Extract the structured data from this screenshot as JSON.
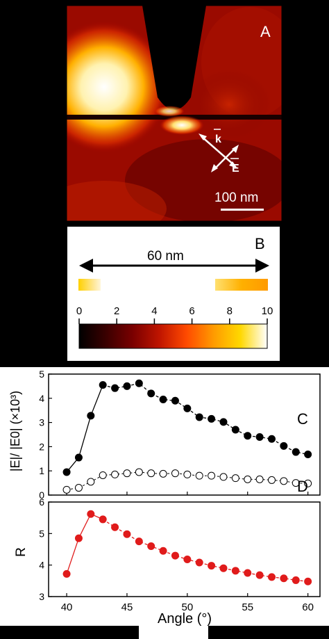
{
  "panel_a": {
    "letter": "A",
    "k_label": "k",
    "e_label": "E",
    "scalebar_label": "100 nm"
  },
  "panel_b": {
    "letter": "B",
    "gap_label": "60 nm",
    "colorbar_ticks": [
      "0",
      "2",
      "4",
      "6",
      "8",
      "10"
    ],
    "colorbar_range": [
      0,
      10
    ],
    "colormap": [
      "#000000",
      "#3a0000",
      "#7a0000",
      "#c01500",
      "#ff4a00",
      "#ff9a00",
      "#ffd800",
      "#ffffff"
    ]
  },
  "colors": {
    "filled_series_c": "#000000",
    "filled_series_d": "#e01b1b",
    "background": "#000000"
  },
  "chart_data": [
    {
      "type": "scatter",
      "panel": "C",
      "ylabel": "|E|/ |E0| (×10³)",
      "xlim": [
        38.5,
        61
      ],
      "ylim": [
        0,
        5
      ],
      "yticks": [
        0,
        1,
        2,
        3,
        4,
        5
      ],
      "grid": false,
      "series": [
        {
          "style": "filled",
          "x": [
            40,
            41,
            42,
            43,
            44,
            45,
            46,
            47,
            48,
            49,
            50,
            51,
            52,
            53,
            54,
            55,
            56,
            57,
            58,
            59,
            60
          ],
          "values": [
            0.95,
            1.55,
            3.28,
            4.55,
            4.42,
            4.5,
            4.62,
            4.2,
            3.95,
            3.9,
            3.58,
            3.22,
            3.15,
            3.02,
            2.7,
            2.45,
            2.4,
            2.32,
            2.03,
            1.78,
            1.68
          ]
        },
        {
          "style": "open",
          "x": [
            40,
            41,
            42,
            43,
            44,
            45,
            46,
            47,
            48,
            49,
            50,
            51,
            52,
            53,
            54,
            55,
            56,
            57,
            58,
            59,
            60
          ],
          "values": [
            0.22,
            0.3,
            0.55,
            0.82,
            0.85,
            0.9,
            0.95,
            0.9,
            0.88,
            0.9,
            0.85,
            0.8,
            0.8,
            0.75,
            0.7,
            0.65,
            0.65,
            0.62,
            0.58,
            0.5,
            0.48
          ]
        }
      ]
    },
    {
      "type": "scatter",
      "panel": "D",
      "ylabel": "R",
      "xlabel": "Angle (°)",
      "xlim": [
        38.5,
        61
      ],
      "ylim": [
        3,
        6
      ],
      "yticks": [
        3,
        4,
        5,
        6
      ],
      "xticks": [
        40,
        45,
        50,
        55,
        60
      ],
      "grid": false,
      "series": [
        {
          "style": "filled",
          "x": [
            40,
            41,
            42,
            43,
            44,
            45,
            46,
            47,
            48,
            49,
            50,
            51,
            52,
            53,
            54,
            55,
            56,
            57,
            58,
            59,
            60
          ],
          "values": [
            3.72,
            4.85,
            5.62,
            5.45,
            5.2,
            4.98,
            4.75,
            4.6,
            4.45,
            4.3,
            4.18,
            4.08,
            3.98,
            3.9,
            3.82,
            3.75,
            3.68,
            3.62,
            3.58,
            3.52,
            3.48
          ]
        }
      ]
    }
  ]
}
